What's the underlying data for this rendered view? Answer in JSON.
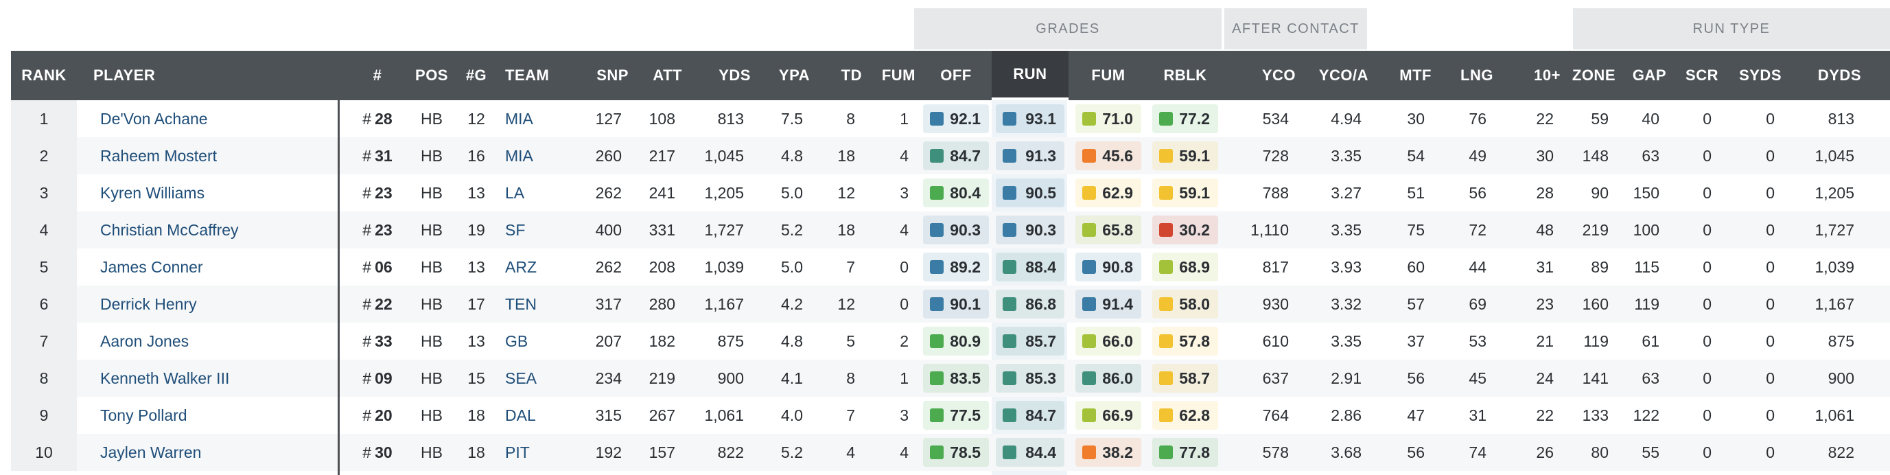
{
  "groups": {
    "grades": "GRADES",
    "after_contact": "AFTER CONTACT",
    "run_type": "RUN TYPE"
  },
  "headers": {
    "rank": "RANK",
    "player": "PLAYER",
    "num": "#",
    "pos": "POS",
    "games": "#G",
    "team": "TEAM",
    "snp": "SNP",
    "att": "ATT",
    "yds": "YDS",
    "ypa": "YPA",
    "td": "TD",
    "fum": "FUM",
    "off": "OFF",
    "run": "RUN",
    "fumg": "FUM",
    "rblk": "RBLK",
    "yco": "YCO",
    "ycoa": "YCO/A",
    "mtf": "MTF",
    "lng": "LNG",
    "ten": "10+",
    "zone": "ZONE",
    "gap": "GAP",
    "scr": "SCR",
    "syds": "SYDS",
    "dyds": "DYDS"
  },
  "colors": {
    "blue": "#3a7ca5",
    "teal": "#3f8f7d",
    "green": "#4caa4f",
    "lime": "#a3c23a",
    "yellow": "#f2c230",
    "orange": "#ef7d2b",
    "red": "#d2452f"
  },
  "rows": [
    {
      "rank": "1",
      "player": "De'Von Achane",
      "num_prefix": "#",
      "num": "28",
      "pos": "HB",
      "g": "12",
      "team": "MIA",
      "snp": "127",
      "att": "108",
      "yds": "813",
      "ypa": "7.5",
      "td": "8",
      "fum": "1",
      "off": {
        "v": "92.1",
        "c": "blue"
      },
      "run": {
        "v": "93.1",
        "c": "blue"
      },
      "fumg": {
        "v": "71.0",
        "c": "lime"
      },
      "rblk": {
        "v": "77.2",
        "c": "green"
      },
      "yco": "534",
      "ycoa": "4.94",
      "mtf": "30",
      "lng": "76",
      "ten": "22",
      "zone": "59",
      "gap": "40",
      "scr": "0",
      "syds": "0",
      "dyds": "813"
    },
    {
      "rank": "2",
      "player": "Raheem Mostert",
      "num_prefix": "#",
      "num": "31",
      "pos": "HB",
      "g": "16",
      "team": "MIA",
      "snp": "260",
      "att": "217",
      "yds": "1,045",
      "ypa": "4.8",
      "td": "18",
      "fum": "4",
      "off": {
        "v": "84.7",
        "c": "teal"
      },
      "run": {
        "v": "91.3",
        "c": "blue"
      },
      "fumg": {
        "v": "45.6",
        "c": "orange"
      },
      "rblk": {
        "v": "59.1",
        "c": "yellow"
      },
      "yco": "728",
      "ycoa": "3.35",
      "mtf": "54",
      "lng": "49",
      "ten": "30",
      "zone": "148",
      "gap": "63",
      "scr": "0",
      "syds": "0",
      "dyds": "1,045"
    },
    {
      "rank": "3",
      "player": "Kyren Williams",
      "num_prefix": "#",
      "num": "23",
      "pos": "HB",
      "g": "13",
      "team": "LA",
      "snp": "262",
      "att": "241",
      "yds": "1,205",
      "ypa": "5.0",
      "td": "12",
      "fum": "3",
      "off": {
        "v": "80.4",
        "c": "green"
      },
      "run": {
        "v": "90.5",
        "c": "blue"
      },
      "fumg": {
        "v": "62.9",
        "c": "yellow"
      },
      "rblk": {
        "v": "59.1",
        "c": "yellow"
      },
      "yco": "788",
      "ycoa": "3.27",
      "mtf": "51",
      "lng": "56",
      "ten": "28",
      "zone": "90",
      "gap": "150",
      "scr": "0",
      "syds": "0",
      "dyds": "1,205"
    },
    {
      "rank": "4",
      "player": "Christian McCaffrey",
      "num_prefix": "#",
      "num": "23",
      "pos": "HB",
      "g": "19",
      "team": "SF",
      "snp": "400",
      "att": "331",
      "yds": "1,727",
      "ypa": "5.2",
      "td": "18",
      "fum": "4",
      "off": {
        "v": "90.3",
        "c": "blue"
      },
      "run": {
        "v": "90.3",
        "c": "blue"
      },
      "fumg": {
        "v": "65.8",
        "c": "lime"
      },
      "rblk": {
        "v": "30.2",
        "c": "red"
      },
      "yco": "1,110",
      "ycoa": "3.35",
      "mtf": "75",
      "lng": "72",
      "ten": "48",
      "zone": "219",
      "gap": "100",
      "scr": "0",
      "syds": "0",
      "dyds": "1,727"
    },
    {
      "rank": "5",
      "player": "James Conner",
      "num_prefix": "#",
      "num": "06",
      "pos": "HB",
      "g": "13",
      "team": "ARZ",
      "snp": "262",
      "att": "208",
      "yds": "1,039",
      "ypa": "5.0",
      "td": "7",
      "fum": "0",
      "off": {
        "v": "89.2",
        "c": "blue"
      },
      "run": {
        "v": "88.4",
        "c": "teal"
      },
      "fumg": {
        "v": "90.8",
        "c": "blue"
      },
      "rblk": {
        "v": "68.9",
        "c": "lime"
      },
      "yco": "817",
      "ycoa": "3.93",
      "mtf": "60",
      "lng": "44",
      "ten": "31",
      "zone": "89",
      "gap": "115",
      "scr": "0",
      "syds": "0",
      "dyds": "1,039"
    },
    {
      "rank": "6",
      "player": "Derrick Henry",
      "num_prefix": "#",
      "num": "22",
      "pos": "HB",
      "g": "17",
      "team": "TEN",
      "snp": "317",
      "att": "280",
      "yds": "1,167",
      "ypa": "4.2",
      "td": "12",
      "fum": "0",
      "off": {
        "v": "90.1",
        "c": "blue"
      },
      "run": {
        "v": "86.8",
        "c": "teal"
      },
      "fumg": {
        "v": "91.4",
        "c": "blue"
      },
      "rblk": {
        "v": "58.0",
        "c": "yellow"
      },
      "yco": "930",
      "ycoa": "3.32",
      "mtf": "57",
      "lng": "69",
      "ten": "23",
      "zone": "160",
      "gap": "119",
      "scr": "0",
      "syds": "0",
      "dyds": "1,167"
    },
    {
      "rank": "7",
      "player": "Aaron Jones",
      "num_prefix": "#",
      "num": "33",
      "pos": "HB",
      "g": "13",
      "team": "GB",
      "snp": "207",
      "att": "182",
      "yds": "875",
      "ypa": "4.8",
      "td": "5",
      "fum": "2",
      "off": {
        "v": "80.9",
        "c": "green"
      },
      "run": {
        "v": "85.7",
        "c": "teal"
      },
      "fumg": {
        "v": "66.0",
        "c": "lime"
      },
      "rblk": {
        "v": "57.8",
        "c": "yellow"
      },
      "yco": "610",
      "ycoa": "3.35",
      "mtf": "37",
      "lng": "53",
      "ten": "21",
      "zone": "119",
      "gap": "61",
      "scr": "0",
      "syds": "0",
      "dyds": "875"
    },
    {
      "rank": "8",
      "player": "Kenneth Walker III",
      "num_prefix": "#",
      "num": "09",
      "pos": "HB",
      "g": "15",
      "team": "SEA",
      "snp": "234",
      "att": "219",
      "yds": "900",
      "ypa": "4.1",
      "td": "8",
      "fum": "1",
      "off": {
        "v": "83.5",
        "c": "green"
      },
      "run": {
        "v": "85.3",
        "c": "teal"
      },
      "fumg": {
        "v": "86.0",
        "c": "teal"
      },
      "rblk": {
        "v": "58.7",
        "c": "yellow"
      },
      "yco": "637",
      "ycoa": "2.91",
      "mtf": "56",
      "lng": "45",
      "ten": "24",
      "zone": "141",
      "gap": "63",
      "scr": "0",
      "syds": "0",
      "dyds": "900"
    },
    {
      "rank": "9",
      "player": "Tony Pollard",
      "num_prefix": "#",
      "num": "20",
      "pos": "HB",
      "g": "18",
      "team": "DAL",
      "snp": "315",
      "att": "267",
      "yds": "1,061",
      "ypa": "4.0",
      "td": "7",
      "fum": "3",
      "off": {
        "v": "77.5",
        "c": "green"
      },
      "run": {
        "v": "84.7",
        "c": "teal"
      },
      "fumg": {
        "v": "66.9",
        "c": "lime"
      },
      "rblk": {
        "v": "62.8",
        "c": "yellow"
      },
      "yco": "764",
      "ycoa": "2.86",
      "mtf": "47",
      "lng": "31",
      "ten": "22",
      "zone": "133",
      "gap": "122",
      "scr": "0",
      "syds": "0",
      "dyds": "1,061"
    },
    {
      "rank": "10",
      "player": "Jaylen Warren",
      "num_prefix": "#",
      "num": "30",
      "pos": "HB",
      "g": "18",
      "team": "PIT",
      "snp": "192",
      "att": "157",
      "yds": "822",
      "ypa": "5.2",
      "td": "4",
      "fum": "4",
      "off": {
        "v": "78.5",
        "c": "green"
      },
      "run": {
        "v": "84.4",
        "c": "teal"
      },
      "fumg": {
        "v": "38.2",
        "c": "orange"
      },
      "rblk": {
        "v": "77.8",
        "c": "green"
      },
      "yco": "578",
      "ycoa": "3.68",
      "mtf": "56",
      "lng": "74",
      "ten": "26",
      "zone": "80",
      "gap": "55",
      "scr": "0",
      "syds": "0",
      "dyds": "822"
    }
  ]
}
